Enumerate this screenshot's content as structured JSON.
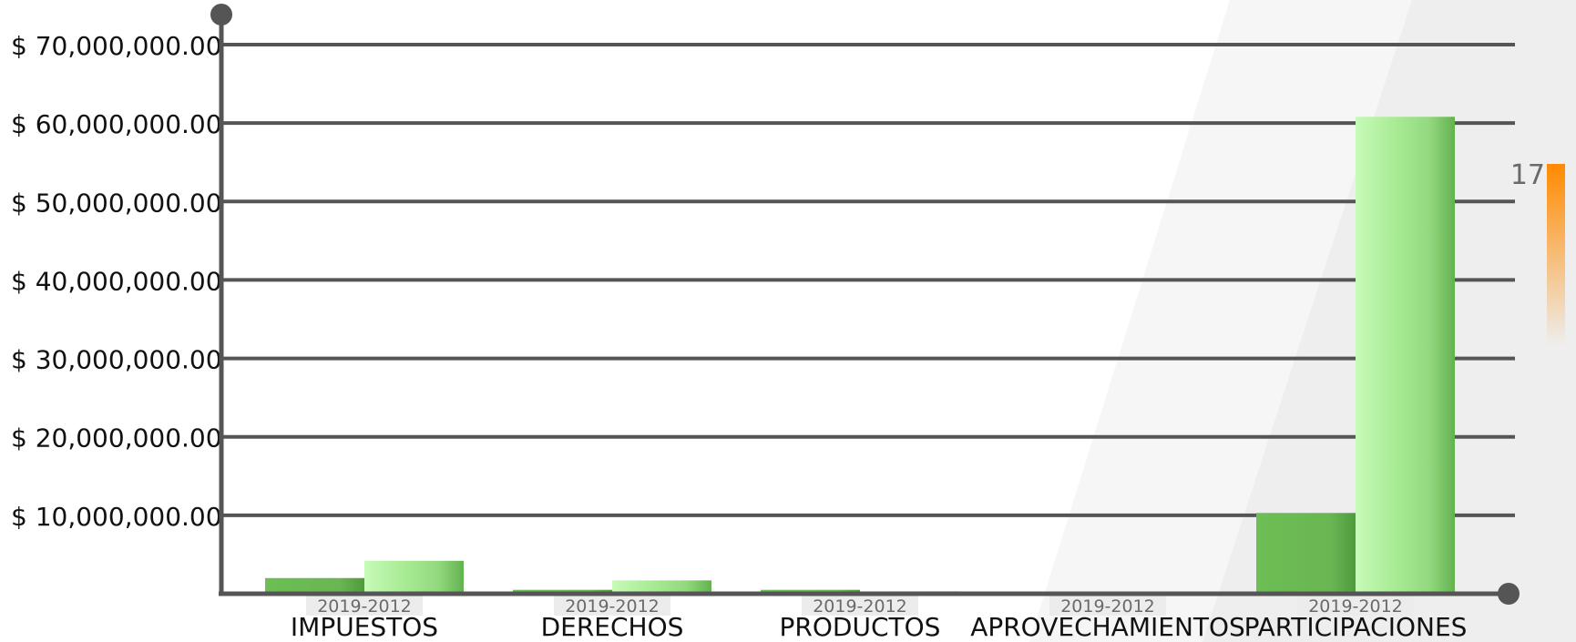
{
  "chart_data": {
    "type": "bar",
    "categories": [
      "IMPUESTOS",
      "DERECHOS",
      "PRODUCTOS",
      "APROVECHAMIENTOS",
      "PARTICIPACIONES"
    ],
    "period_label": "2019-2012",
    "series": [
      {
        "values": [
          2000000,
          500000,
          500000,
          250000,
          10300000
        ]
      },
      {
        "values": [
          4200000,
          1700000,
          300000,
          250000,
          60800000
        ]
      }
    ],
    "ylim": [
      0,
      70000000
    ],
    "yticks": [
      {
        "value": 10000000,
        "label": "$ 10,000,000.00"
      },
      {
        "value": 20000000,
        "label": "$ 20,000,000.00"
      },
      {
        "value": 30000000,
        "label": "$ 30,000,000.00"
      },
      {
        "value": 40000000,
        "label": "$ 40,000,000.00"
      },
      {
        "value": 50000000,
        "label": "$ 50,000,000.00"
      },
      {
        "value": 60000000,
        "label": "$ 60,000,000.00"
      },
      {
        "value": 70000000,
        "label": "$ 70,000,000.00"
      }
    ],
    "grid": true,
    "colors": {
      "series_dark": "#5fae48",
      "series_light": "#9ee48a",
      "axis": "#555555",
      "accent": "#ff8a00"
    }
  },
  "side_indicator": {
    "label": "17"
  }
}
